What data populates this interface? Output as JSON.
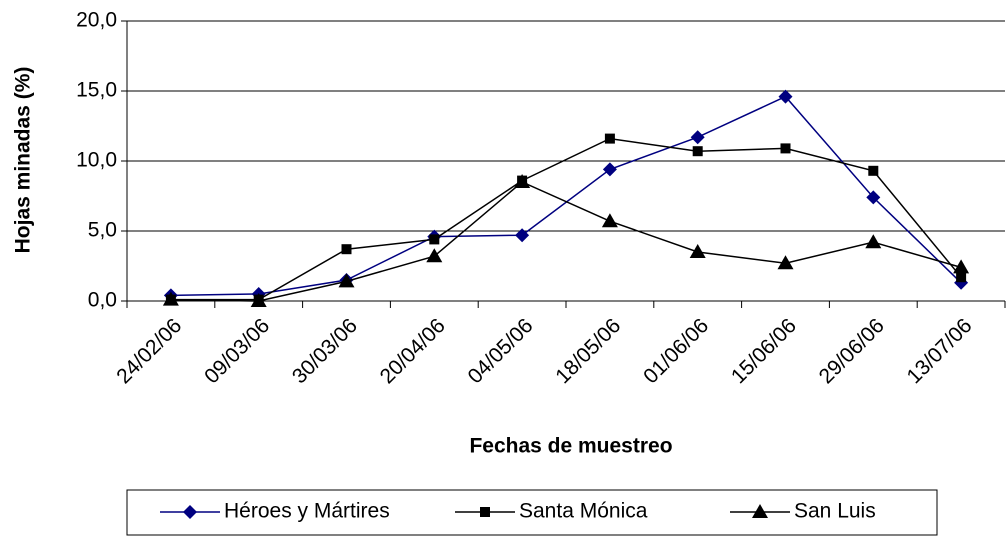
{
  "chart_data": {
    "type": "line",
    "x_label": "Fechas de muestreo",
    "y_label": "Hojas minadas (%)",
    "categories": [
      "24/02/06",
      "09/03/06",
      "30/03/06",
      "20/04/06",
      "04/05/06",
      "18/05/06",
      "01/06/06",
      "15/06/06",
      "29/06/06",
      "13/07/06"
    ],
    "series": [
      {
        "name": "Héroes y Mártires",
        "color": "#000080",
        "marker": "diamond",
        "values": [
          0.4,
          0.5,
          1.5,
          4.6,
          4.7,
          9.4,
          11.7,
          14.6,
          7.4,
          1.3
        ]
      },
      {
        "name": "Santa Mónica",
        "color": "#000000",
        "marker": "square",
        "values": [
          0.1,
          0.1,
          3.7,
          4.4,
          8.6,
          11.6,
          10.7,
          10.9,
          9.3,
          1.7
        ]
      },
      {
        "name": "San Luis",
        "color": "#000000",
        "marker": "triangle",
        "values": [
          0.1,
          0.0,
          1.4,
          3.2,
          8.5,
          5.7,
          3.5,
          2.7,
          4.2,
          2.4
        ]
      }
    ],
    "ylim": [
      0,
      20
    ],
    "yticks": [
      {
        "value": 0,
        "label": "0,0"
      },
      {
        "value": 5,
        "label": "5,0"
      },
      {
        "value": 10,
        "label": "10,0"
      },
      {
        "value": 15,
        "label": "15,0"
      },
      {
        "value": 20,
        "label": "20,0"
      }
    ],
    "grid": true,
    "legend": "bottom"
  }
}
